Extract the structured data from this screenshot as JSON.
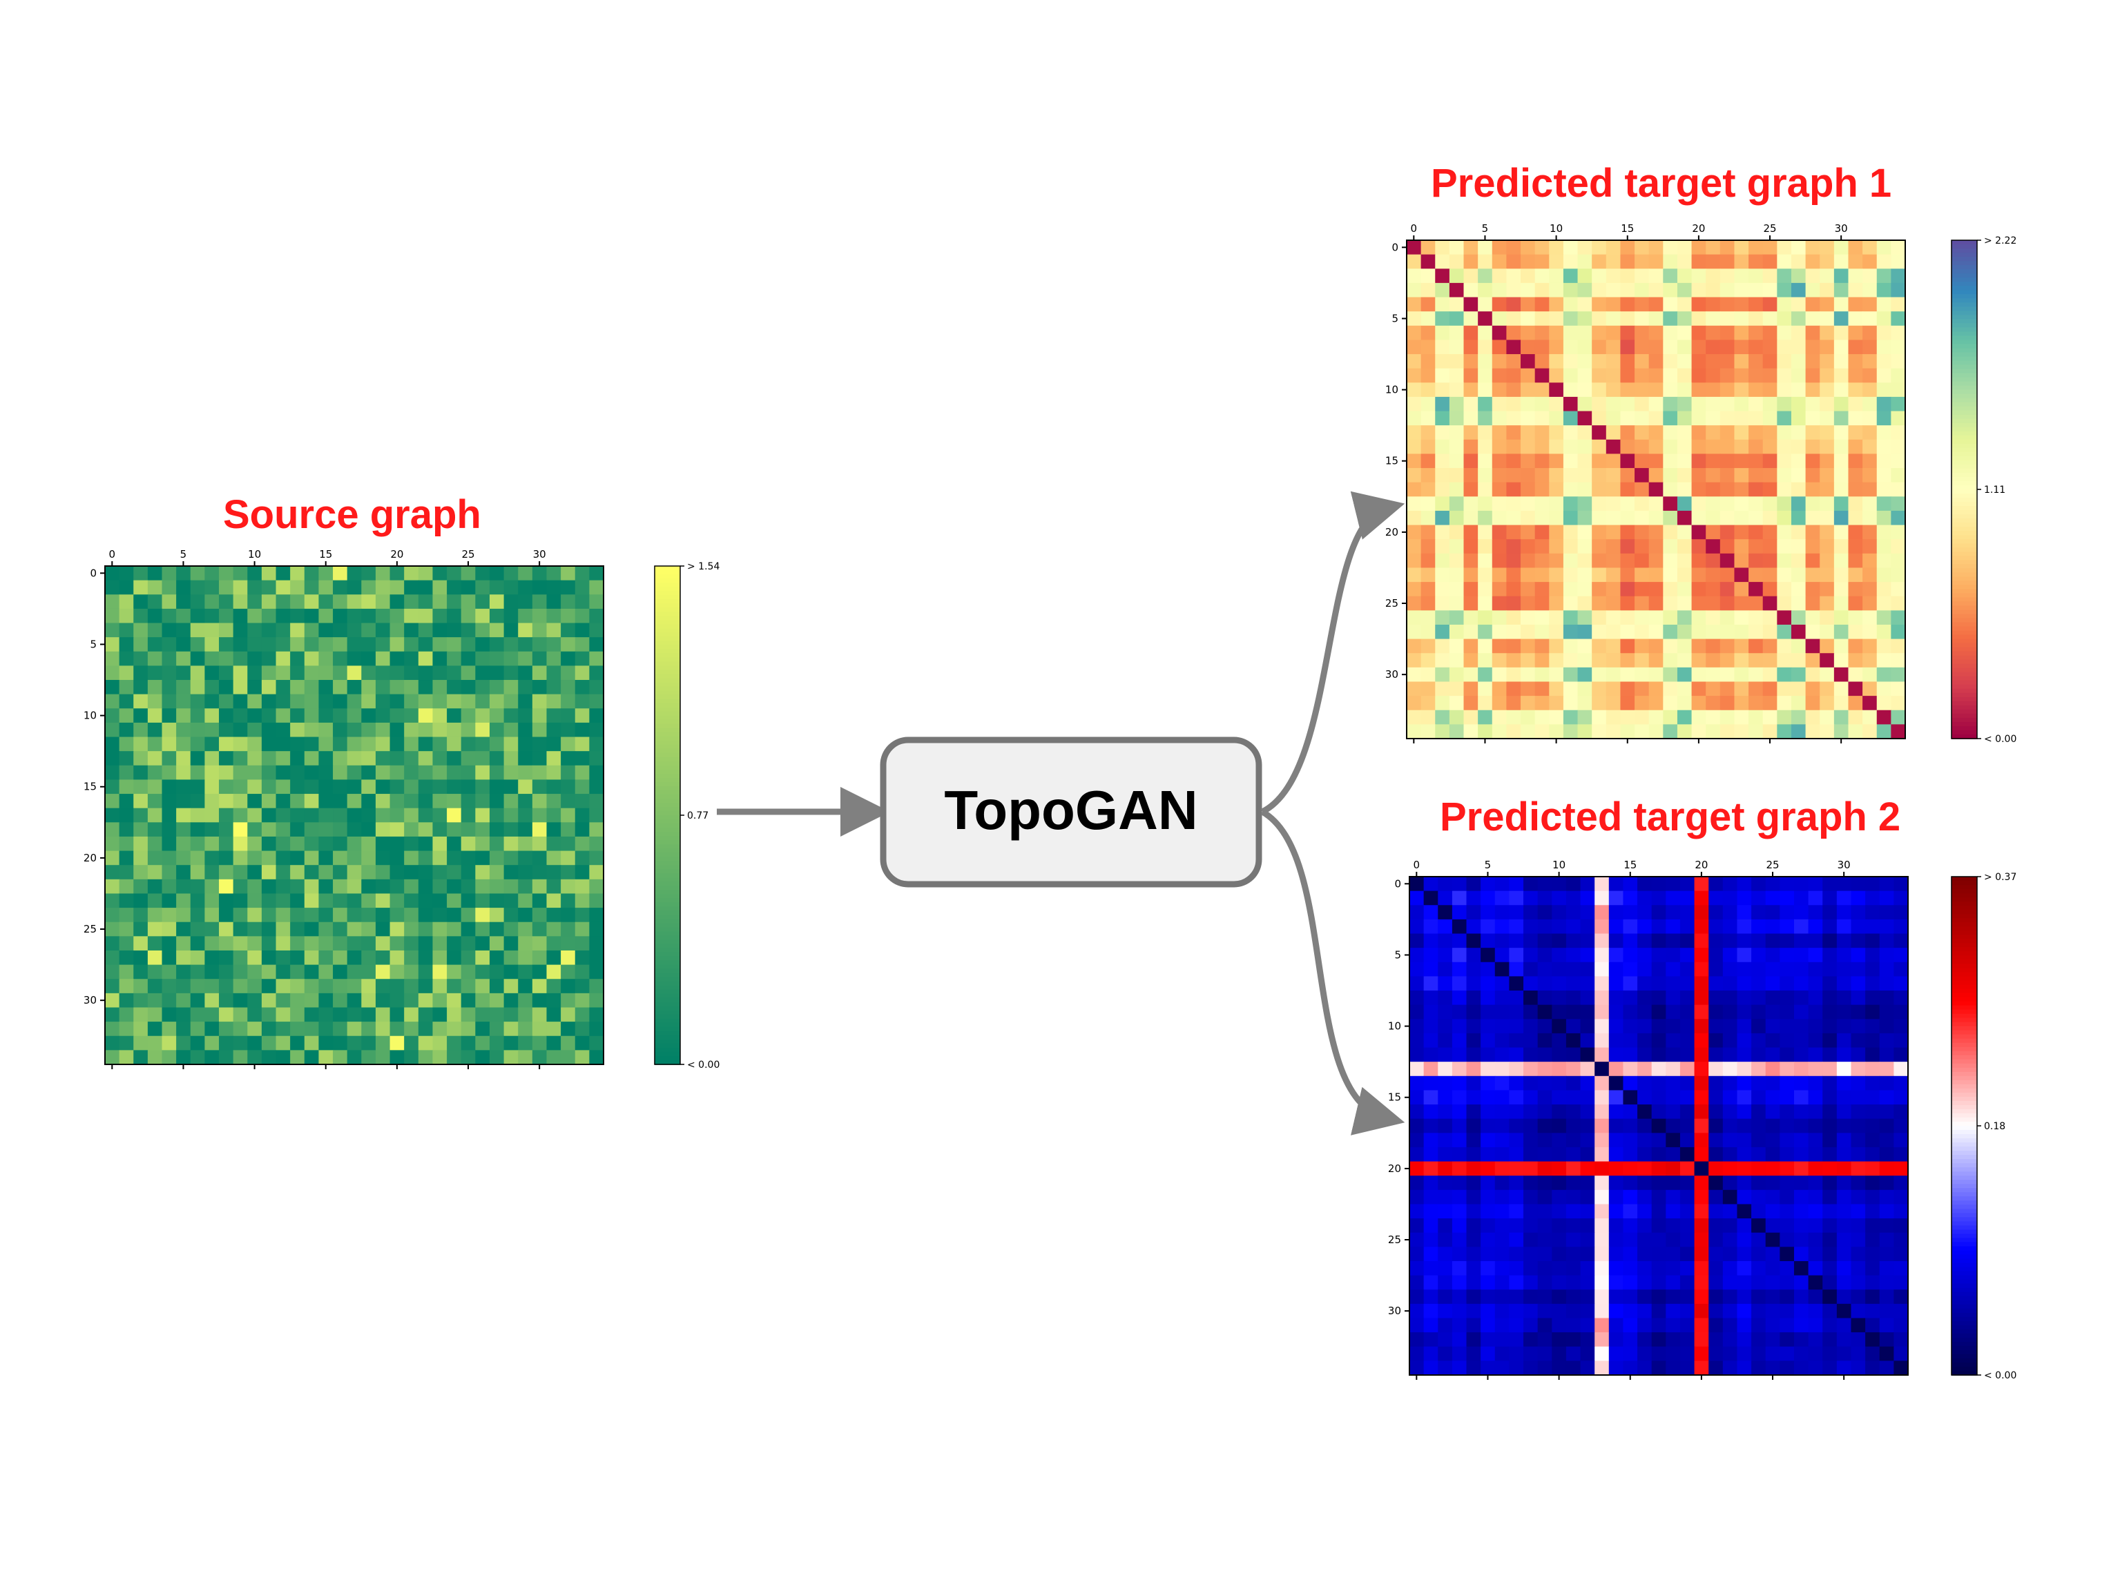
{
  "source": {
    "title": "Source graph",
    "colormap": "summer",
    "colorbar_labels": [
      "> 1.54",
      "0.77",
      "< 0.00"
    ],
    "tick_labels": [
      "0",
      "5",
      "10",
      "15",
      "20",
      "25",
      "30"
    ],
    "matrix_size": 35
  },
  "model": {
    "label": "TopoGAN"
  },
  "target1": {
    "title": "Predicted target graph 1",
    "colormap": "spectral",
    "colorbar_labels": [
      "> 2.22",
      "1.11",
      "< 0.00"
    ],
    "tick_labels": [
      "0",
      "5",
      "10",
      "15",
      "20",
      "25",
      "30"
    ],
    "matrix_size": 35
  },
  "target2": {
    "title": "Predicted target graph 2",
    "colormap": "seismic",
    "colorbar_labels": [
      "> 0.37",
      "0.18",
      "< 0.00"
    ],
    "tick_labels": [
      "0",
      "5",
      "10",
      "15",
      "20",
      "25",
      "30"
    ],
    "matrix_size": 35
  },
  "colors": {
    "title": "#ff1a1a",
    "arrow": "#808080",
    "box_fill": "#f0f0f0",
    "box_border": "#767676"
  }
}
